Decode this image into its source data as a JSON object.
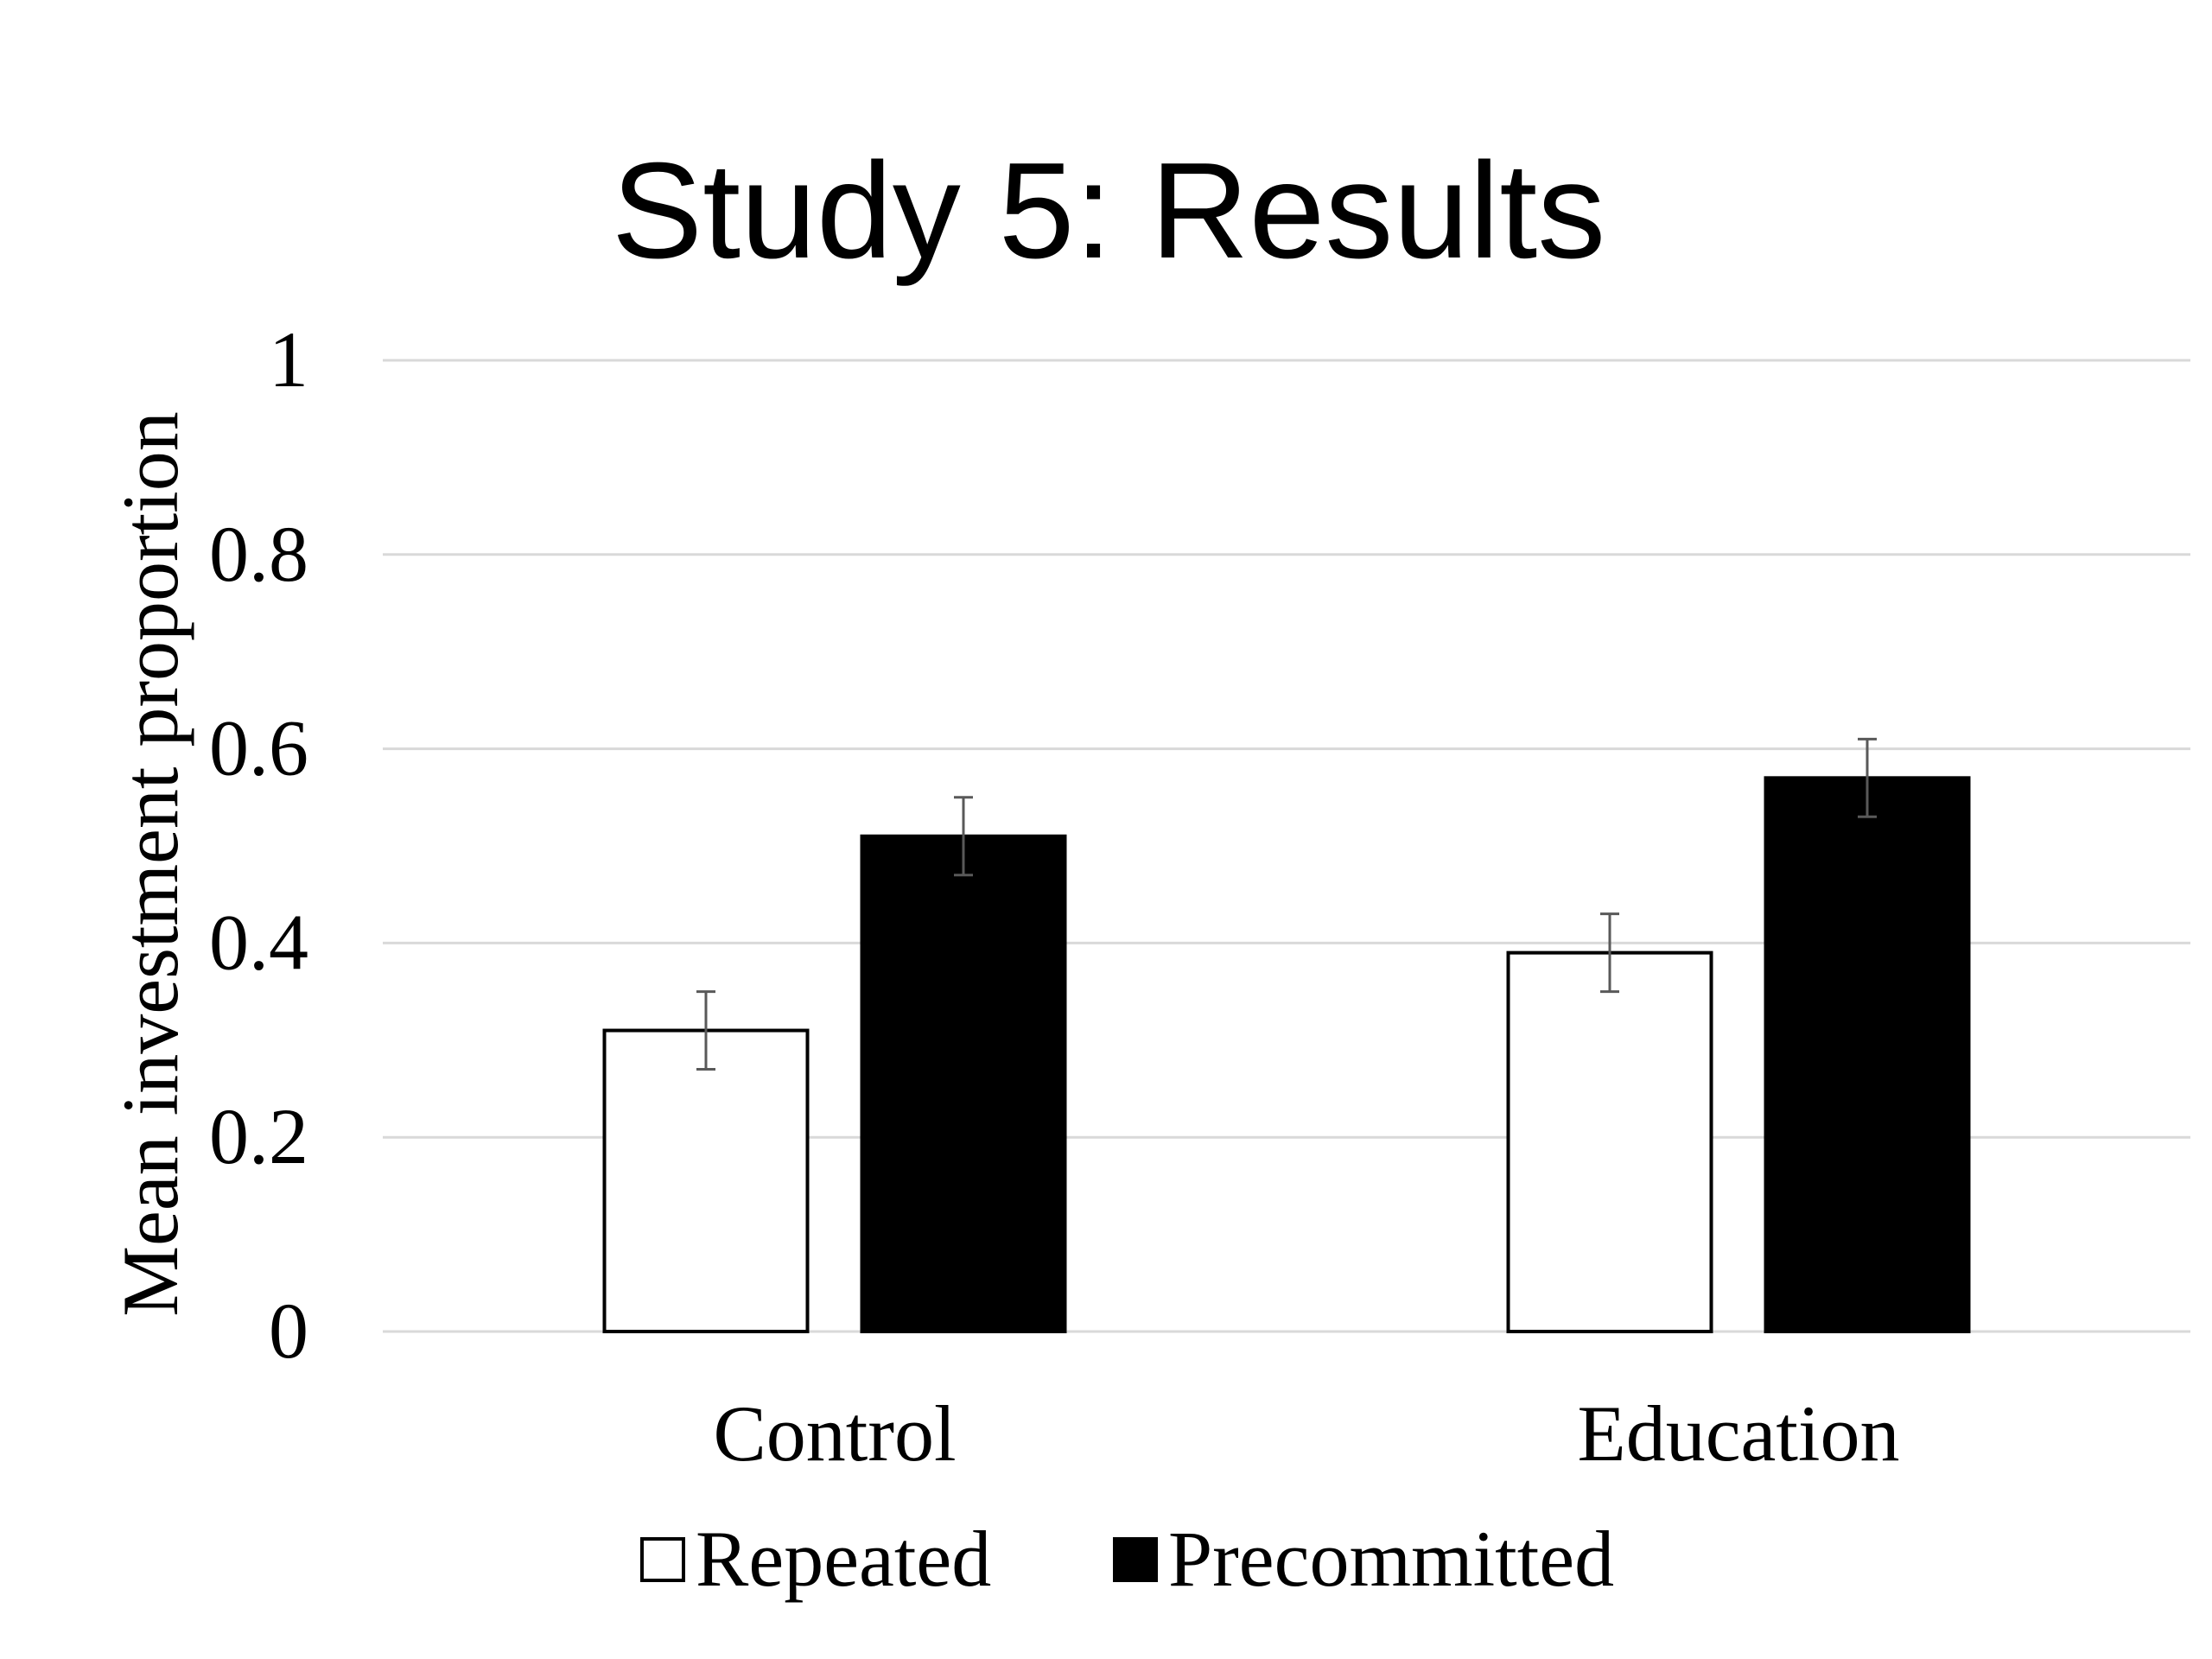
{
  "chart_data": {
    "type": "bar",
    "title": "Study 5: Results",
    "xlabel": "",
    "ylabel": "Mean investment proportion",
    "categories": [
      "Control",
      "Education"
    ],
    "series": [
      {
        "name": "Repeated",
        "color": "#ffffff",
        "stroke": "#000000",
        "values": [
          0.31,
          0.39
        ],
        "error": [
          0.04,
          0.04
        ]
      },
      {
        "name": "Precommitted",
        "color": "#000000",
        "stroke": "#000000",
        "values": [
          0.51,
          0.57
        ],
        "error": [
          0.04,
          0.04
        ]
      }
    ],
    "ylim": [
      0,
      1
    ],
    "yticks": [
      "0",
      "0.2",
      "0.4",
      "0.6",
      "0.8",
      "1"
    ],
    "ytick_values": [
      0,
      0.2,
      0.4,
      0.6,
      0.8,
      1
    ],
    "grid": true,
    "gridline_color": "#d9d9d9",
    "errorbar_color": "#595959",
    "legend_position": "bottom"
  }
}
